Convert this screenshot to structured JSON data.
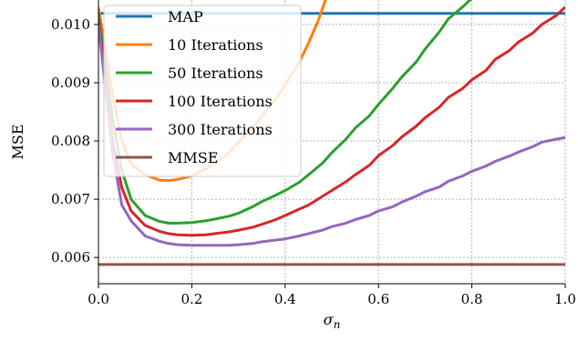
{
  "chart_data": {
    "type": "line",
    "xlabel": "σ",
    "xlabel_sub": "n",
    "ylabel": "MSE",
    "xlim": [
      0.0,
      1.0
    ],
    "ylim": [
      0.00555,
      0.01042
    ],
    "xticks": [
      0.0,
      0.2,
      0.4,
      0.6,
      0.8,
      1.0
    ],
    "xtick_labels": [
      "0.0",
      "0.2",
      "0.4",
      "0.6",
      "0.8",
      "1.0"
    ],
    "yticks": [
      0.006,
      0.007,
      0.008,
      0.009,
      0.01
    ],
    "ytick_labels": [
      "0.006",
      "0.007",
      "0.008",
      "0.009",
      "0.010"
    ],
    "grid": true,
    "legend_position": "top-left",
    "series": [
      {
        "name": "MAP",
        "color": "#1f77b4",
        "x": [
          0.0,
          1.0
        ],
        "y": [
          0.01019,
          0.01019
        ]
      },
      {
        "name": "10 Iterations",
        "color": "#ff7f0e",
        "x": [
          0.0,
          0.03,
          0.05,
          0.07,
          0.1,
          0.13,
          0.15,
          0.17,
          0.2,
          0.23,
          0.25,
          0.28,
          0.3,
          0.33,
          0.35,
          0.38,
          0.4,
          0.43,
          0.45,
          0.47,
          0.49
        ],
        "y": [
          0.0103,
          0.0088,
          0.008,
          0.0076,
          0.00742,
          0.00733,
          0.00732,
          0.00734,
          0.0074,
          0.00752,
          0.00762,
          0.0078,
          0.00798,
          0.00822,
          0.00842,
          0.00872,
          0.00897,
          0.00935,
          0.00968,
          0.01005,
          0.0105
        ]
      },
      {
        "name": "50 Iterations",
        "color": "#2ca02c",
        "x": [
          0.0,
          0.03,
          0.05,
          0.07,
          0.1,
          0.13,
          0.15,
          0.17,
          0.2,
          0.23,
          0.25,
          0.28,
          0.3,
          0.33,
          0.35,
          0.38,
          0.4,
          0.43,
          0.45,
          0.48,
          0.5,
          0.53,
          0.55,
          0.58,
          0.6,
          0.63,
          0.65,
          0.68,
          0.7,
          0.73,
          0.75,
          0.78,
          0.8,
          0.83,
          0.84
        ],
        "y": [
          0.0102,
          0.0084,
          0.0075,
          0.007,
          0.00672,
          0.00662,
          0.00659,
          0.00659,
          0.0066,
          0.00663,
          0.00666,
          0.00671,
          0.00676,
          0.00687,
          0.00696,
          0.00707,
          0.00715,
          0.00729,
          0.00742,
          0.00762,
          0.0078,
          0.00803,
          0.00822,
          0.00843,
          0.00863,
          0.0089,
          0.0091,
          0.00935,
          0.00958,
          0.00987,
          0.0101,
          0.0103,
          0.01045,
          0.0106,
          0.0107
        ]
      },
      {
        "name": "100 Iterations",
        "color": "#d62728",
        "x": [
          0.0,
          0.03,
          0.05,
          0.07,
          0.1,
          0.13,
          0.15,
          0.17,
          0.2,
          0.23,
          0.25,
          0.28,
          0.3,
          0.33,
          0.35,
          0.38,
          0.4,
          0.43,
          0.45,
          0.48,
          0.5,
          0.53,
          0.55,
          0.58,
          0.6,
          0.63,
          0.65,
          0.68,
          0.7,
          0.73,
          0.75,
          0.78,
          0.8,
          0.83,
          0.85,
          0.88,
          0.9,
          0.93,
          0.95,
          0.98,
          1.0
        ],
        "y": [
          0.0101,
          0.008,
          0.0072,
          0.0068,
          0.00655,
          0.00645,
          0.00641,
          0.00639,
          0.00638,
          0.00639,
          0.00641,
          0.00644,
          0.00647,
          0.00652,
          0.00657,
          0.00665,
          0.00672,
          0.00683,
          0.0069,
          0.00705,
          0.00715,
          0.0073,
          0.00742,
          0.00758,
          0.00775,
          0.00792,
          0.00807,
          0.00825,
          0.0084,
          0.00858,
          0.00875,
          0.0089,
          0.00905,
          0.00921,
          0.0094,
          0.00955,
          0.0097,
          0.00985,
          0.01,
          0.01015,
          0.0103
        ]
      },
      {
        "name": "300 Iterations",
        "color": "#9467bd",
        "x": [
          0.0,
          0.03,
          0.05,
          0.07,
          0.1,
          0.13,
          0.15,
          0.17,
          0.2,
          0.23,
          0.25,
          0.28,
          0.3,
          0.33,
          0.35,
          0.38,
          0.4,
          0.43,
          0.45,
          0.48,
          0.5,
          0.53,
          0.55,
          0.58,
          0.6,
          0.63,
          0.65,
          0.68,
          0.7,
          0.73,
          0.75,
          0.78,
          0.8,
          0.83,
          0.85,
          0.88,
          0.9,
          0.93,
          0.95,
          0.98,
          1.0
        ],
        "y": [
          0.01,
          0.0078,
          0.0069,
          0.00663,
          0.00637,
          0.00628,
          0.00624,
          0.00622,
          0.00621,
          0.00621,
          0.00621,
          0.00621,
          0.00622,
          0.00624,
          0.00627,
          0.0063,
          0.00632,
          0.00637,
          0.00641,
          0.00647,
          0.00653,
          0.00659,
          0.00665,
          0.00672,
          0.0068,
          0.00687,
          0.00695,
          0.00705,
          0.00713,
          0.00721,
          0.00731,
          0.0074,
          0.00748,
          0.00757,
          0.00765,
          0.00774,
          0.00781,
          0.0079,
          0.00798,
          0.00803,
          0.00806
        ]
      },
      {
        "name": "MMSE",
        "color": "#8c564b",
        "x": [
          0.0,
          1.0
        ],
        "y": [
          0.00588,
          0.00588
        ]
      }
    ]
  }
}
